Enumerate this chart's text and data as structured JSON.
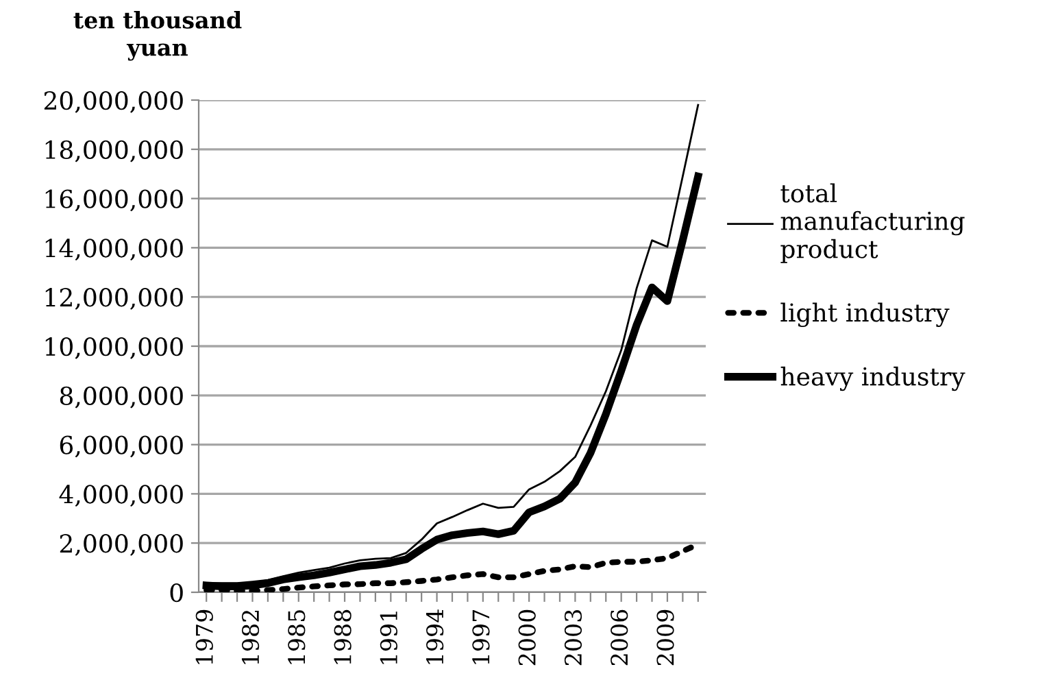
{
  "chart_data": {
    "type": "line",
    "ylabel": "ten thousand\nyuan",
    "categories": [
      "1979",
      null,
      null,
      "1982",
      null,
      null,
      "1985",
      null,
      null,
      "1988",
      null,
      null,
      "1991",
      null,
      null,
      "1994",
      null,
      null,
      "1997",
      null,
      null,
      "2000",
      null,
      null,
      "2003",
      null,
      null,
      "2006",
      null,
      null,
      "2009",
      null,
      null
    ],
    "series": [
      {
        "name": "total\nmanufacturing\nproduct",
        "color": "#000000",
        "line_style": "solid",
        "values": [
          370000,
          370000,
          370000,
          430000,
          500000,
          650000,
          800000,
          900000,
          1000000,
          1170000,
          1300000,
          1360000,
          1390000,
          1600000,
          2140000,
          2800000,
          3060000,
          3340000,
          3600000,
          3430000,
          3470000,
          4180000,
          4490000,
          4920000,
          5500000,
          6780000,
          8170000,
          9840000,
          12350000,
          14300000,
          14040000,
          16900000,
          19800000
        ]
      },
      {
        "name": "light industry",
        "color": "#000000",
        "line_style": "dotted",
        "values": [
          90000,
          90000,
          60000,
          60000,
          90000,
          130000,
          190000,
          240000,
          280000,
          320000,
          330000,
          370000,
          370000,
          410000,
          460000,
          520000,
          610000,
          690000,
          740000,
          610000,
          610000,
          740000,
          870000,
          930000,
          1060000,
          1020000,
          1200000,
          1240000,
          1240000,
          1300000,
          1390000,
          1670000,
          1950000
        ]
      },
      {
        "name": "heavy industry",
        "color": "#000000",
        "line_style": "solid",
        "values": [
          280000,
          240000,
          240000,
          280000,
          370000,
          520000,
          610000,
          690000,
          800000,
          930000,
          1060000,
          1110000,
          1200000,
          1340000,
          1760000,
          2140000,
          2320000,
          2410000,
          2470000,
          2360000,
          2500000,
          3250000,
          3490000,
          3800000,
          4460000,
          5660000,
          7240000,
          9000000,
          10860000,
          12390000,
          11830000,
          14300000,
          16900000
        ]
      }
    ],
    "ylim": [
      0,
      20000000
    ],
    "yticks": [
      {
        "value": 0,
        "label": "0"
      },
      {
        "value": 2000000,
        "label": "2,000,000"
      },
      {
        "value": 4000000,
        "label": "4,000,000"
      },
      {
        "value": 6000000,
        "label": "6,000,000"
      },
      {
        "value": 8000000,
        "label": "8,000,000"
      },
      {
        "value": 10000000,
        "label": "10,000,000"
      },
      {
        "value": 12000000,
        "label": "12,000,000"
      },
      {
        "value": 14000000,
        "label": "14,000,000"
      },
      {
        "value": 16000000,
        "label": "16,000,000"
      },
      {
        "value": 18000000,
        "label": "18,000,000"
      },
      {
        "value": 20000000,
        "label": "20,000,000"
      }
    ],
    "grid": "y",
    "legend": "right",
    "marker": "none"
  }
}
